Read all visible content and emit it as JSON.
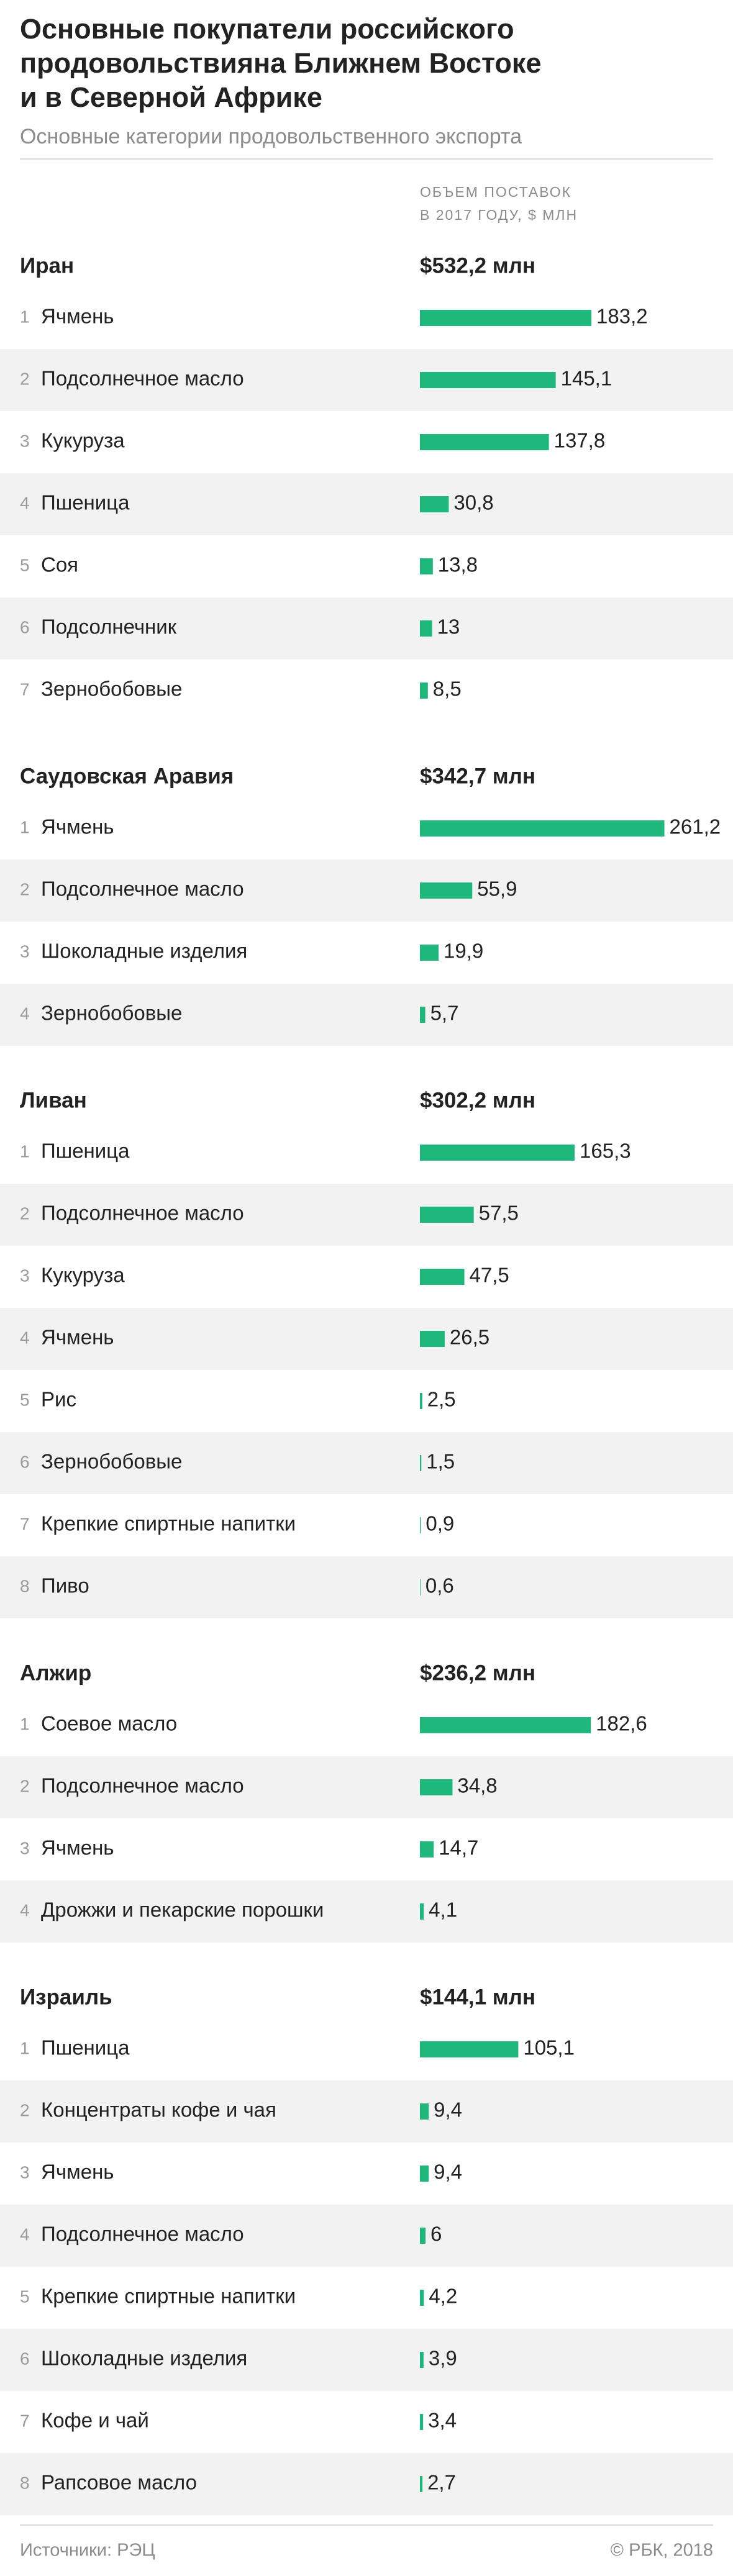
{
  "header": {
    "title_lines": [
      "Основные покупатели российского",
      "продовольствияна Ближнем Востоке",
      "и в Северной Африке"
    ],
    "subtitle": "Основные категории продовольственного экспорта",
    "value_header": [
      "ОБЪЕМ ПОСТАВОК",
      "В 2017 ГОДУ, $ МЛН"
    ]
  },
  "chart_data": [
    {
      "type": "bar",
      "title": "Иран",
      "total": "$532,2 млн",
      "ranks": [
        1,
        2,
        3,
        4,
        5,
        6,
        7
      ],
      "categories": [
        "Ячмень",
        "Подсолнечное масло",
        "Кукуруза",
        "Пшеница",
        "Соя",
        "Подсолнечник",
        "Зернобобовые"
      ],
      "values": [
        183.2,
        145.1,
        137.8,
        30.8,
        13.8,
        13,
        8.5
      ],
      "value_labels": [
        "183,2",
        "145,1",
        "137,8",
        "30,8",
        "13,8",
        "13",
        "8,5"
      ],
      "xlim": [
        0,
        300
      ],
      "color": "#1fb87c"
    },
    {
      "type": "bar",
      "title": "Саудовская Аравия",
      "total": "$342,7 млн",
      "ranks": [
        1,
        2,
        3,
        4
      ],
      "categories": [
        "Ячмень",
        "Подсолнечное масло",
        "Шоколадные изделия",
        "Зернобобовые"
      ],
      "values": [
        261.2,
        55.9,
        19.9,
        5.7
      ],
      "value_labels": [
        "261,2",
        "55,9",
        "19,9",
        "5,7"
      ],
      "xlim": [
        0,
        300
      ],
      "color": "#1fb87c"
    },
    {
      "type": "bar",
      "title": "Ливан",
      "total": "$302,2 млн",
      "ranks": [
        1,
        2,
        3,
        4,
        5,
        6,
        7,
        8
      ],
      "categories": [
        "Пшеница",
        "Подсолнечное масло",
        "Кукуруза",
        "Ячмень",
        "Рис",
        "Зернобобовые",
        "Крепкие спиртные напитки",
        "Пиво"
      ],
      "values": [
        165.3,
        57.5,
        47.5,
        26.5,
        2.5,
        1.5,
        0.9,
        0.6
      ],
      "value_labels": [
        "165,3",
        "57,5",
        "47,5",
        "26,5",
        "2,5",
        "1,5",
        "0,9",
        "0,6"
      ],
      "xlim": [
        0,
        300
      ],
      "color": "#1fb87c"
    },
    {
      "type": "bar",
      "title": "Алжир",
      "total": "$236,2 млн",
      "ranks": [
        1,
        2,
        3,
        4
      ],
      "categories": [
        "Соевое масло",
        "Подсолнечное масло",
        "Ячмень",
        "Дрожжи и пекарские порошки"
      ],
      "values": [
        182.6,
        34.8,
        14.7,
        4.1
      ],
      "value_labels": [
        "182,6",
        "34,8",
        "14,7",
        "4,1"
      ],
      "xlim": [
        0,
        300
      ],
      "color": "#1fb87c"
    },
    {
      "type": "bar",
      "title": "Израиль",
      "total": "$144,1 млн",
      "ranks": [
        1,
        2,
        3,
        4,
        5,
        6,
        7,
        8
      ],
      "categories": [
        "Пшеница",
        "Концентраты кофе и чая",
        "Ячмень",
        "Подсолнечное масло",
        "Крепкие спиртные напитки",
        "Шоколадные изделия",
        "Кофе и чай",
        "Рапсовое масло"
      ],
      "values": [
        105.1,
        9.4,
        9.4,
        6,
        4.2,
        3.9,
        3.4,
        2.7
      ],
      "value_labels": [
        "105,1",
        "9,4",
        "9,4",
        "6",
        "4,2",
        "3,9",
        "3,4",
        "2,7"
      ],
      "xlim": [
        0,
        300
      ],
      "color": "#1fb87c"
    }
  ],
  "footer": {
    "source": "Источники: РЭЦ",
    "copyright": "© РБК, 2018"
  }
}
